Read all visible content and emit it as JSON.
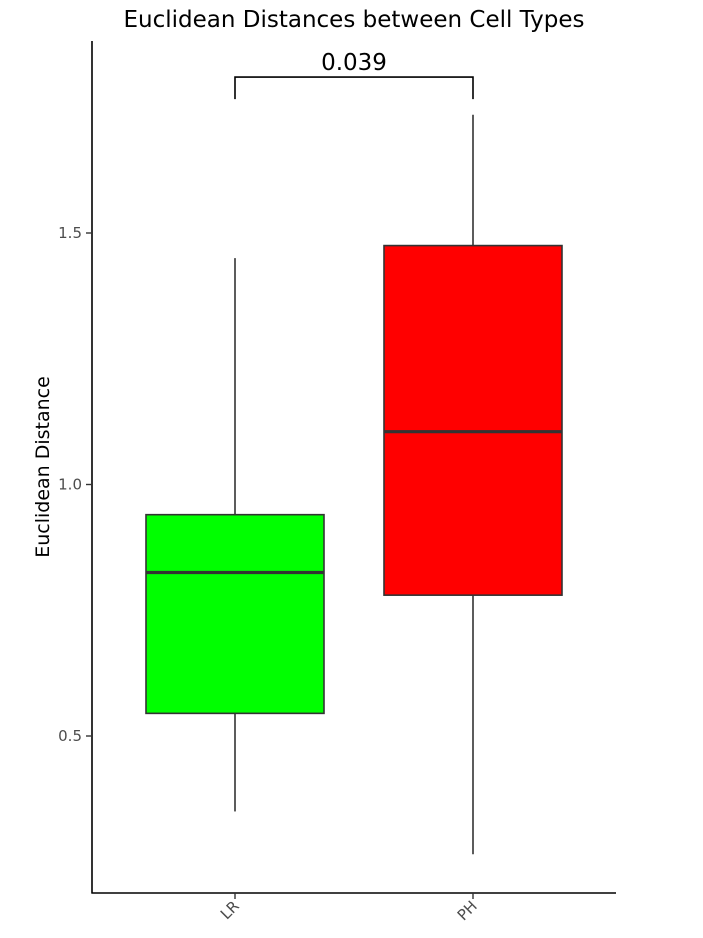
{
  "chart_data": {
    "type": "box",
    "title": "Euclidean Distances between Cell Types",
    "xlabel": "",
    "ylabel": "Euclidean Distance",
    "ylim": [
      0.2,
      1.9
    ],
    "yticks": [
      0.5,
      1.0,
      1.5
    ],
    "ytick_labels": [
      "0.5",
      "1.0",
      "1.5"
    ],
    "categories": [
      "LR",
      "PH"
    ],
    "boxes": [
      {
        "category": "LR",
        "whisker_low": 0.35,
        "q1": 0.545,
        "median": 0.825,
        "q3": 0.94,
        "whisker_high": 1.45,
        "color": "#00ff00"
      },
      {
        "category": "PH",
        "whisker_low": 0.265,
        "q1": 0.78,
        "median": 1.105,
        "q3": 1.475,
        "whisker_high": 1.735,
        "color": "#ff0000"
      }
    ],
    "annotation": {
      "text": "0.039",
      "between": [
        "LR",
        "PH"
      ],
      "y": 1.81
    },
    "grid": false,
    "legend": "none"
  }
}
